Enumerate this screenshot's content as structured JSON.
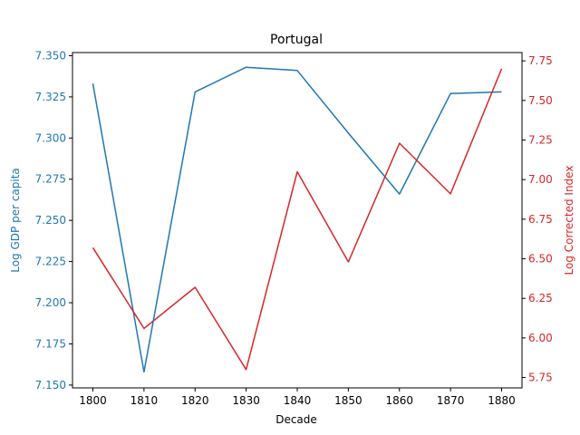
{
  "chart_data": {
    "type": "line",
    "title": "Portugal",
    "xlabel": "Decade",
    "ylabel_left": "Log GDP per capita",
    "ylabel_right": "Log Corrected Index",
    "x": [
      1800,
      1810,
      1820,
      1830,
      1840,
      1850,
      1860,
      1870,
      1880
    ],
    "x_ticks": [
      "1800",
      "1810",
      "1820",
      "1830",
      "1840",
      "1850",
      "1860",
      "1870",
      "1880"
    ],
    "ylim_left": [
      7.1483,
      7.3519
    ],
    "ylim_right": [
      5.6845,
      7.8025
    ],
    "y_ticks_left": [
      "7.150",
      "7.175",
      "7.200",
      "7.225",
      "7.250",
      "7.275",
      "7.300",
      "7.325",
      "7.350"
    ],
    "y_ticks_right": [
      "5.75",
      "6.00",
      "6.25",
      "6.50",
      "6.75",
      "7.00",
      "7.25",
      "7.50",
      "7.75"
    ],
    "series": [
      {
        "axis": "left",
        "color": "#1f77b4",
        "values": [
          7.333,
          7.158,
          7.328,
          7.343,
          7.341,
          7.303,
          7.266,
          7.327,
          7.328
        ]
      },
      {
        "axis": "right",
        "color": "#d62728",
        "values": [
          6.57,
          6.06,
          6.32,
          5.8,
          7.05,
          6.48,
          7.23,
          6.91,
          7.7
        ]
      }
    ],
    "grid": false
  }
}
